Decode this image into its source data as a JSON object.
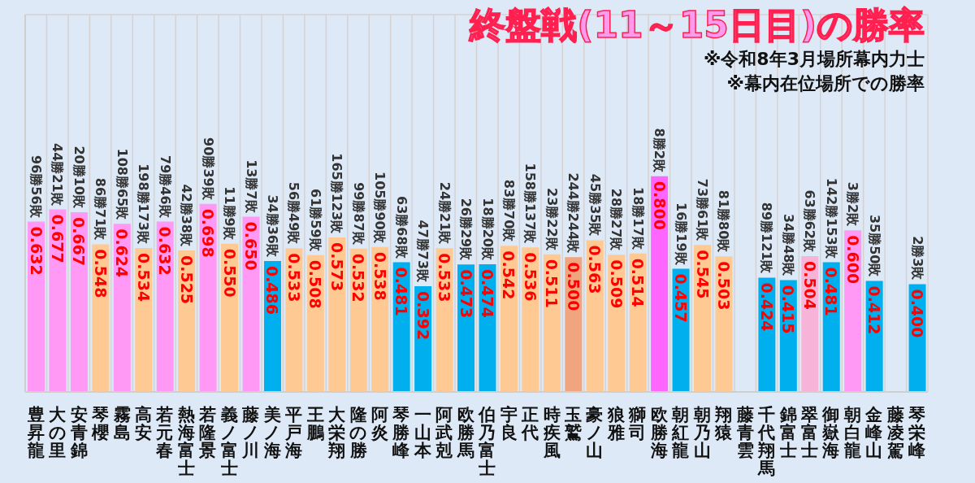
{
  "chart_data": {
    "type": "bar",
    "title": "終盤戦(11～15日目)の勝率",
    "subtitle": "※令和8年3月場所幕内力士",
    "categories": [
      "豊昇龍",
      "大の里",
      "安青錦",
      "琴櫻",
      "霧島",
      "高安",
      "若元春",
      "熱海富士",
      "若隆景",
      "義ノ富士",
      "藤ノ川",
      "美ノ海",
      "平戸海",
      "王鵬",
      "大栄翔",
      "隆の勝",
      "阿炎",
      "琴勝峰",
      "一山本",
      "阿武剋",
      "欧勝馬",
      "伯乃富士",
      "宇良",
      "正代",
      "時疾風",
      "玉鷲",
      "豪ノ山",
      "狼雅",
      "獅司",
      "欧勝海",
      "朝紅龍",
      "朝乃山",
      "翔猿",
      "藤青雲",
      "千代翔馬",
      "錦富士",
      "翠富士",
      "御嶽海",
      "朝白龍",
      "金峰山",
      "藤凌駕",
      "琴栄峰"
    ],
    "values": [
      0.632,
      0.677,
      0.667,
      0.548,
      0.624,
      0.534,
      0.632,
      0.525,
      0.698,
      0.55,
      0.65,
      0.486,
      0.533,
      0.508,
      0.573,
      0.532,
      0.538,
      0.481,
      0.392,
      0.533,
      0.473,
      0.474,
      0.542,
      0.536,
      0.511,
      0.5,
      0.563,
      0.509,
      0.514,
      0.8,
      0.457,
      0.545,
      0.503,
      null,
      0.424,
      0.415,
      0.504,
      0.481,
      0.6,
      0.412,
      null,
      0.4
    ],
    "colors": [
      "#ff99f5",
      "#ff99f5",
      "#ff99f5",
      "#ffc993",
      "#ff99f5",
      "#ffc993",
      "#ff99f5",
      "#ffc993",
      "#ff99f5",
      "#ffc993",
      "#ff99f5",
      "#00b0ee",
      "#ffc993",
      "#ffc993",
      "#ffc993",
      "#ffc993",
      "#ffc993",
      "#00b0ee",
      "#00b0ee",
      "#ffc993",
      "#00b0ee",
      "#00b0ee",
      "#ffc993",
      "#ffc993",
      "#ffc993",
      "#f0a57e",
      "#ffc993",
      "#ffc993",
      "#ffc993",
      "#ff66ff",
      "#00b0ee",
      "#ffc993",
      "#ffc993",
      "#00b0ee",
      "#00b0ee",
      "#00b0ee",
      "#f8b4d8",
      "#00b0ee",
      "#ff99f5",
      "#00b0ee",
      "#00b0ee",
      "#00b0ee"
    ],
    "ylim": [
      0,
      1.4
    ],
    "value_labels": [
      "0.632",
      "0.677",
      "0.667",
      "0.548",
      "0.624",
      "0.534",
      "0.632",
      "0.525",
      "0.698",
      "0.550",
      "0.650",
      "0.486",
      "0.533",
      "0.508",
      "0.573",
      "0.532",
      "0.538",
      "0.481",
      "0.392",
      "0.533",
      "0.473",
      "0.474",
      "0.542",
      "0.536",
      "0.511",
      "0.500",
      "0.563",
      "0.509",
      "0.514",
      "0.800",
      "0.457",
      "0.545",
      "0.503",
      null,
      "0.424",
      "0.415",
      "0.504",
      "0.481",
      "0.600",
      "0.412",
      null,
      "0.400"
    ],
    "tick_labels": "x",
    "grid": true,
    "annotations": [
      "※幕内在位場所での勝率",
      {
        "text": "96勝56敗",
        "x": "豊昇龍",
        "y": 0.632
      },
      {
        "text": "44勝21敗",
        "x": "大の里",
        "y": 0.677
      },
      {
        "text": "20勝10敗",
        "x": "安青錦",
        "y": 0.667
      },
      {
        "text": "86勝71敗",
        "x": "琴櫻",
        "y": 0.548
      },
      {
        "text": "108勝65敗",
        "x": "霧島",
        "y": 0.624
      },
      {
        "text": "198勝173敗",
        "x": "高安",
        "y": 0.534
      },
      {
        "text": "79勝46敗",
        "x": "若元春",
        "y": 0.632
      },
      {
        "text": "42勝38敗",
        "x": "熱海富士",
        "y": 0.525
      },
      {
        "text": "90勝39敗",
        "x": "若隆景",
        "y": 0.698
      },
      {
        "text": "11勝9敗",
        "x": "義ノ富士",
        "y": 0.55
      },
      {
        "text": "13勝7敗",
        "x": "藤ノ川",
        "y": 0.65
      },
      {
        "text": "34勝36敗",
        "x": "美ノ海",
        "y": 0.486
      },
      {
        "text": "56勝49敗",
        "x": "平戸海",
        "y": 0.533
      },
      {
        "text": "61勝59敗",
        "x": "王鵬",
        "y": 0.508
      },
      {
        "text": "165勝123敗",
        "x": "大栄翔",
        "y": 0.573
      },
      {
        "text": "99勝87敗",
        "x": "隆の勝",
        "y": 0.532
      },
      {
        "text": "105勝90敗",
        "x": "阿炎",
        "y": 0.538
      },
      {
        "text": "63勝68敗",
        "x": "琴勝峰",
        "y": 0.481
      },
      {
        "text": "47勝73敗",
        "x": "一山本",
        "y": 0.392
      },
      {
        "text": "24勝21敗",
        "x": "阿武剋",
        "y": 0.533
      },
      {
        "text": "26勝29敗",
        "x": "欧勝馬",
        "y": 0.473
      },
      {
        "text": "18勝20敗",
        "x": "伯乃富士",
        "y": 0.474
      },
      {
        "text": "83勝70敗",
        "x": "宇良",
        "y": 0.542
      },
      {
        "text": "158勝137敗",
        "x": "正代",
        "y": 0.536
      },
      {
        "text": "23勝22敗",
        "x": "時疾風",
        "y": 0.511
      },
      {
        "text": "244勝244敗",
        "x": "玉鷲",
        "y": 0.5
      },
      {
        "text": "45勝35敗",
        "x": "豪ノ山",
        "y": 0.563
      },
      {
        "text": "28勝27敗",
        "x": "狼雅",
        "y": 0.509
      },
      {
        "text": "18勝17敗",
        "x": "獅司",
        "y": 0.514
      },
      {
        "text": "8勝2敗",
        "x": "欧勝海",
        "y": 0.8
      },
      {
        "text": "16勝19敗",
        "x": "朝紅龍",
        "y": 0.457
      },
      {
        "text": "73勝61敗",
        "x": "朝乃山",
        "y": 0.545
      },
      {
        "text": "81勝80敗",
        "x": "翔猿",
        "y": 0.503
      },
      {
        "text": "89勝121敗",
        "x": "千代翔馬",
        "y": 0.424
      },
      {
        "text": "34勝48敗",
        "x": "錦富士",
        "y": 0.415
      },
      {
        "text": "63勝62敗",
        "x": "翠富士",
        "y": 0.504
      },
      {
        "text": "142勝153敗",
        "x": "御嶽海",
        "y": 0.481
      },
      {
        "text": "3勝2敗",
        "x": "朝白龍",
        "y": 0.6
      },
      {
        "text": "35勝50敗",
        "x": "金峰山",
        "y": 0.412
      },
      {
        "text": "2勝3敗",
        "x": "琴栄峰",
        "y": 0.4
      }
    ]
  }
}
